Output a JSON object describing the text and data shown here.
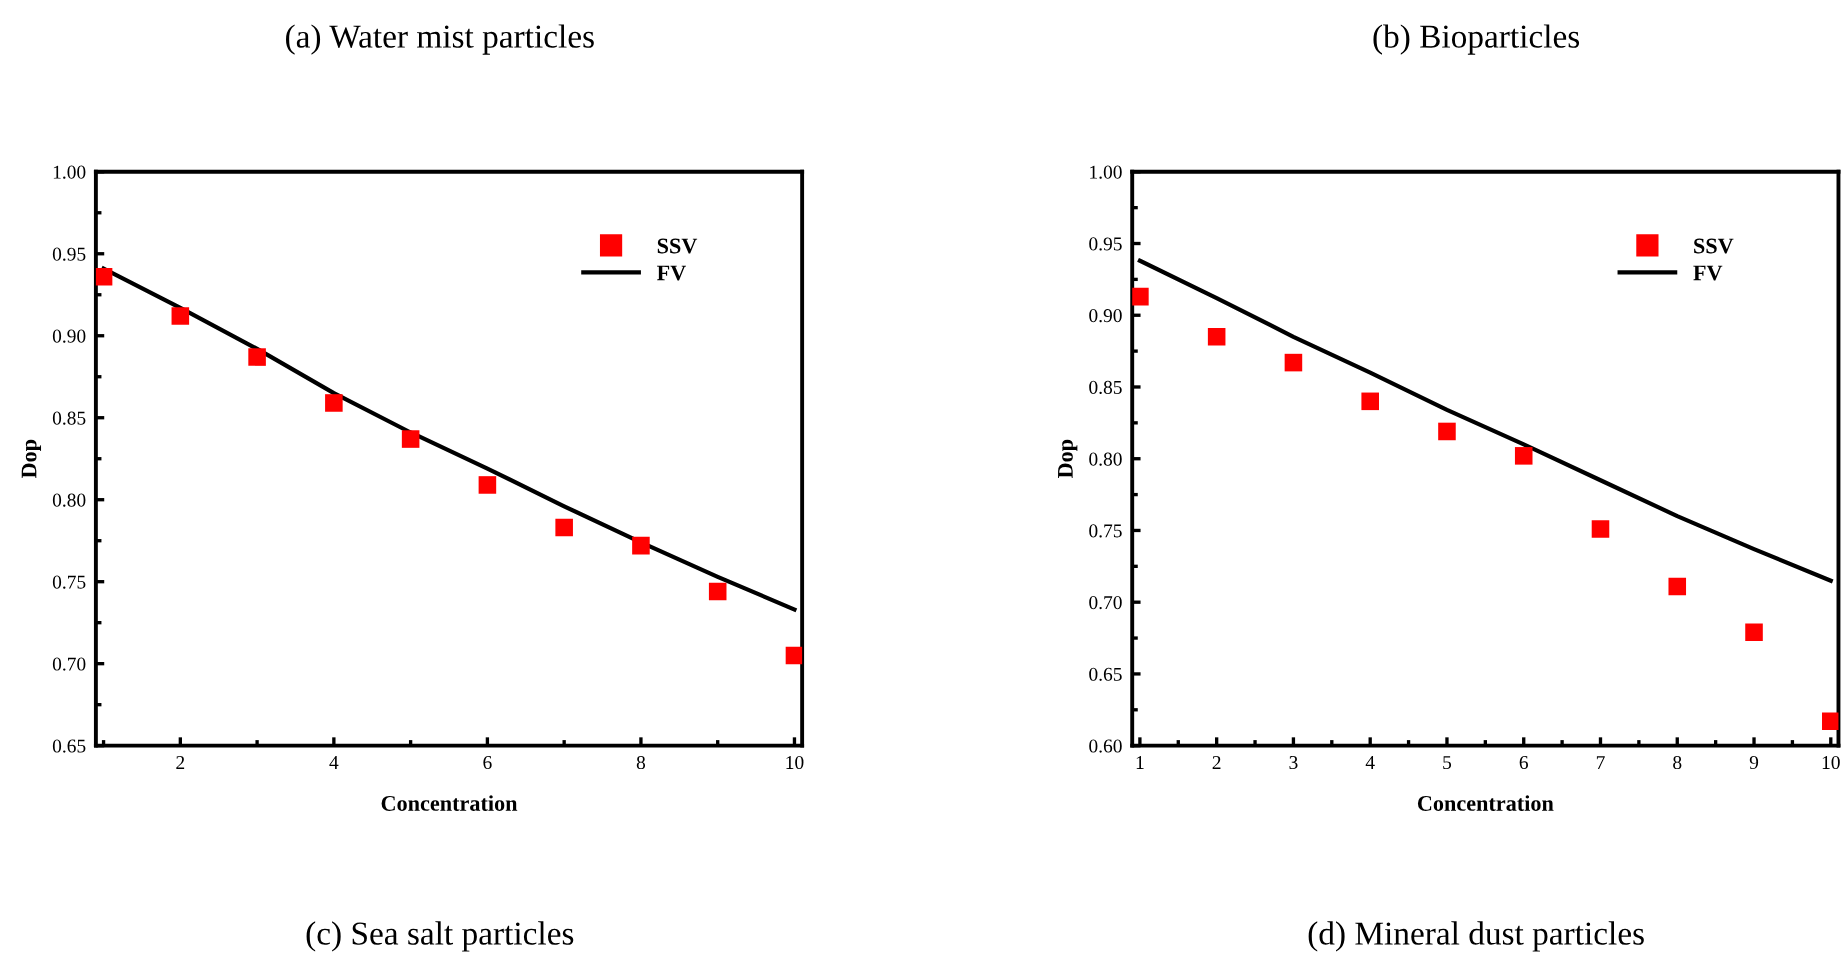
{
  "chart_data": [
    {
      "type": "scatter",
      "title": "(a) Water mist particles",
      "annotations": [
        "(c) Sea salt particles"
      ],
      "xlabel": "Concentration",
      "ylabel": "Dop",
      "xlim": [
        0.9,
        10.1
      ],
      "xticks": [
        2,
        4,
        6,
        8,
        10
      ],
      "ylim": [
        0.65,
        1.0
      ],
      "yticks": [
        {
          "value": 0.65,
          "label": "0.65"
        },
        {
          "value": 0.7,
          "label": "0.70"
        },
        {
          "value": 0.75,
          "label": "0.75"
        },
        {
          "value": 0.8,
          "label": "0.80"
        },
        {
          "value": 0.85,
          "label": "0.85"
        },
        {
          "value": 0.9,
          "label": "0.90"
        },
        {
          "value": 0.95,
          "label": "0.95"
        },
        {
          "value": 1.0,
          "label": "1.00"
        }
      ],
      "grid": false,
      "legend": "top right",
      "series": [
        {
          "name": "SSV",
          "marker": "square",
          "color": "#ff0000",
          "x": [
            1,
            2,
            3,
            4,
            5,
            6,
            7,
            8,
            9,
            10
          ],
          "values": [
            0.936,
            0.912,
            0.887,
            0.859,
            0.837,
            0.809,
            0.783,
            0.772,
            0.744,
            0.705
          ]
        },
        {
          "name": "FV",
          "type": "line",
          "line_style": "solid",
          "color": "#000000",
          "x": [
            1,
            2,
            3,
            4,
            5,
            6,
            7,
            8,
            9,
            10
          ],
          "values": [
            0.941,
            0.917,
            0.892,
            0.865,
            0.841,
            0.819,
            0.796,
            0.774,
            0.753,
            0.733
          ]
        }
      ]
    },
    {
      "type": "scatter",
      "title": "(b) Bioparticles",
      "annotations": [
        "(d) Mineral dust particles"
      ],
      "xlabel": "Concentration",
      "ylabel": "Dop",
      "xlim": [
        0.9,
        10.1
      ],
      "xticks": [
        1,
        2,
        3,
        4,
        5,
        6,
        7,
        8,
        9,
        10
      ],
      "ylim": [
        0.6,
        1.0
      ],
      "yticks": [
        {
          "value": 0.6,
          "label": "0.60"
        },
        {
          "value": 0.65,
          "label": "0.65"
        },
        {
          "value": 0.7,
          "label": "0.70"
        },
        {
          "value": 0.75,
          "label": "0.75"
        },
        {
          "value": 0.8,
          "label": "0.80"
        },
        {
          "value": 0.85,
          "label": "0.85"
        },
        {
          "value": 0.9,
          "label": "0.90"
        },
        {
          "value": 0.95,
          "label": "0.95"
        },
        {
          "value": 1.0,
          "label": "1.00"
        }
      ],
      "grid": false,
      "legend": "top right",
      "series": [
        {
          "name": "SSV",
          "marker": "square",
          "color": "#ff0000",
          "x": [
            1,
            2,
            3,
            4,
            5,
            6,
            7,
            8,
            9,
            10
          ],
          "values": [
            0.913,
            0.885,
            0.867,
            0.84,
            0.819,
            0.802,
            0.751,
            0.711,
            0.679,
            0.617
          ]
        },
        {
          "name": "FV",
          "type": "line",
          "line_style": "solid",
          "color": "#000000",
          "x": [
            1,
            2,
            3,
            4,
            5,
            6,
            7,
            8,
            9,
            10
          ],
          "values": [
            0.938,
            0.912,
            0.885,
            0.86,
            0.834,
            0.81,
            0.785,
            0.76,
            0.737,
            0.715
          ]
        }
      ]
    }
  ]
}
